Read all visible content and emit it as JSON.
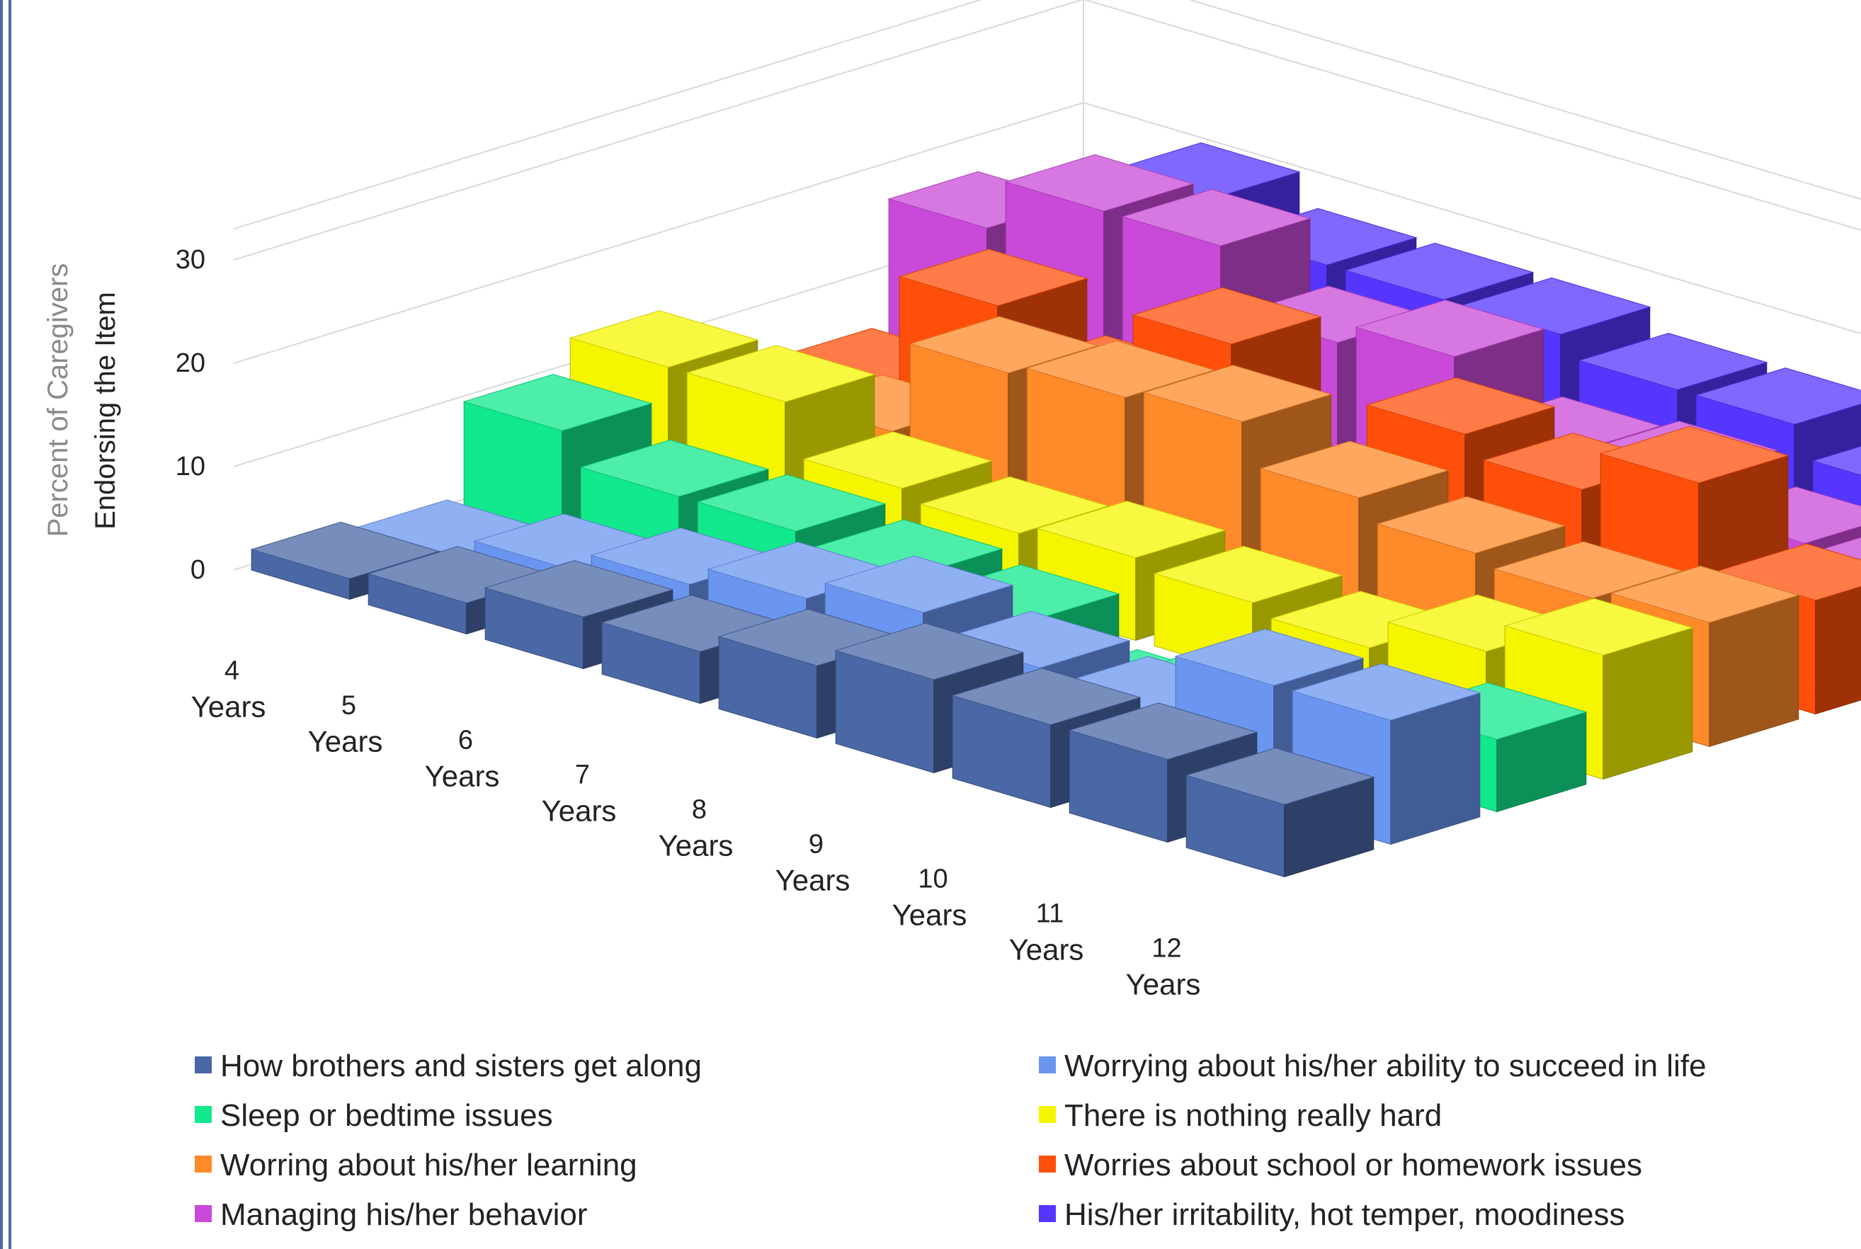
{
  "chart_data": {
    "type": "bar3d",
    "title": "",
    "ylabel_line1": "Percent of Caregivers",
    "ylabel_line2": "Endorsing the Item",
    "yticks": [
      "0",
      "10",
      "20",
      "30"
    ],
    "ylim": [
      0,
      30
    ],
    "categories": [
      {
        "num": "4",
        "unit": "Years"
      },
      {
        "num": "5",
        "unit": "Years"
      },
      {
        "num": "6",
        "unit": "Years"
      },
      {
        "num": "7",
        "unit": "Years"
      },
      {
        "num": "8",
        "unit": "Years"
      },
      {
        "num": "9",
        "unit": "Years"
      },
      {
        "num": "10",
        "unit": "Years"
      },
      {
        "num": "11",
        "unit": "Years"
      },
      {
        "num": "12",
        "unit": "Years"
      }
    ],
    "series": [
      {
        "name": "How brothers and sisters get along",
        "color": "#4a67a6",
        "values": [
          2,
          3,
          5,
          5,
          7,
          9,
          8,
          8,
          7
        ]
      },
      {
        "name": "Worrying about his/her ability to succeed in life",
        "color": "#6b96f0",
        "values": [
          1,
          3,
          5,
          7,
          9,
          7,
          6,
          12,
          12
        ]
      },
      {
        "name": "Sleep or bedtime issues",
        "color": "#12e88c",
        "values": [
          10,
          7,
          7,
          6,
          5,
          0,
          5,
          5,
          7
        ]
      },
      {
        "name": "There is nothing really hard",
        "color": "#f5f500",
        "values": [
          13,
          13,
          8,
          7,
          8,
          7,
          6,
          9,
          12
        ]
      },
      {
        "name": "Worring about his/her learning",
        "color": "#ff8a2a",
        "values": [
          2,
          7,
          16,
          17,
          18,
          14,
          12,
          11,
          12
        ]
      },
      {
        "name": "Worries about school or homework issues",
        "color": "#ff4f0a",
        "values": [
          5,
          16,
          11,
          19,
          5,
          17,
          15,
          19,
          11
        ]
      },
      {
        "name": "Managing his/her behavior",
        "color": "#c94ad8",
        "values": [
          17,
          22,
          22,
          16,
          18,
          12,
          13,
          10,
          10
        ]
      },
      {
        "name": "His/her irritability, hot temper, moodiness",
        "color": "#5536ff",
        "values": [
          15,
          20,
          17,
          17,
          17,
          15,
          15,
          12,
          17
        ]
      }
    ],
    "legend_position": "bottom",
    "grid": true
  }
}
